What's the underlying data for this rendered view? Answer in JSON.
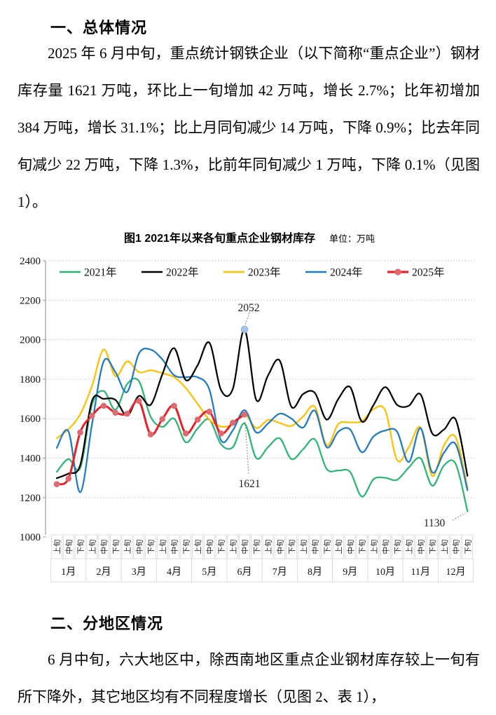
{
  "page": {
    "section1_heading": "一、总体情况",
    "paragraph1": "2025 年 6 月中旬，重点统计钢铁企业（以下简称“重点企业”）钢材库存量 1621 万吨，环比上一旬增加 42 万吨，增长 2.7%；比年初增加 384 万吨，增长 31.1%；比上月同旬减少 14 万吨，下降 0.9%；比去年同旬减少 22 万吨，下降 1.3%，比前年同旬减少 1 万吨，下降 0.1%（见图 1）。",
    "section2_heading": "二、分地区情况",
    "paragraph2": "6 月中旬，六大地区中，除西南地区重点企业钢材库存较上一旬有所下降外，其它地区均有不同程度增长（见图 2、表 1），"
  },
  "chart_data": {
    "type": "line",
    "title": "图1  2021年以来各旬重点企业钢材库存",
    "unit_label": "单位：万吨",
    "ylabel": "",
    "xlabel": "",
    "ylim": [
      1000,
      2400
    ],
    "ytick_step": 200,
    "yticks": [
      1000,
      1200,
      1400,
      1600,
      1800,
      2000,
      2200,
      2400
    ],
    "grid": "dotted-horizontal",
    "legend_position": "top-center",
    "line_style": "smoothed",
    "months": [
      "1月",
      "2月",
      "3月",
      "4月",
      "5月",
      "6月",
      "7月",
      "8月",
      "9月",
      "10月",
      "11月",
      "12月"
    ],
    "periods": [
      "上旬",
      "中旬",
      "下旬"
    ],
    "series": [
      {
        "name": "2021年",
        "color": "#2BB673",
        "values": [
          1330,
          1395,
          1350,
          1670,
          1740,
          1645,
          1775,
          1790,
          1610,
          1558,
          1600,
          1480,
          1550,
          1595,
          1470,
          1455,
          1575,
          1400,
          1455,
          1500,
          1395,
          1445,
          1495,
          1345,
          1337,
          1330,
          1205,
          1293,
          1300,
          1290,
          1352,
          1399,
          1260,
          1363,
          1370,
          1130
        ]
      },
      {
        "name": "2022年",
        "color": "#000000",
        "values": [
          1298,
          1322,
          1364,
          1690,
          1700,
          1695,
          1615,
          1715,
          1670,
          1825,
          1957,
          1795,
          1870,
          1985,
          1745,
          1750,
          2052,
          1695,
          1818,
          1894,
          1660,
          1725,
          1730,
          1595,
          1700,
          1760,
          1585,
          1670,
          1760,
          1670,
          1665,
          1723,
          1525,
          1545,
          1595,
          1310
        ]
      },
      {
        "name": "2023年",
        "color": "#FFC000",
        "values": [
          1500,
          1547,
          1622,
          1765,
          1950,
          1815,
          1890,
          1835,
          1845,
          1830,
          1810,
          1755,
          1675,
          1595,
          1560,
          1570,
          1622,
          1552,
          1593,
          1578,
          1563,
          1611,
          1660,
          1465,
          1573,
          1581,
          1587,
          1648,
          1640,
          1390,
          1455,
          1555,
          1310,
          1465,
          1505,
          1250
        ]
      },
      {
        "name": "2024年",
        "color": "#1F7AC5",
        "values": [
          1452,
          1535,
          1227,
          1570,
          1890,
          1835,
          1735,
          1930,
          1950,
          1900,
          1820,
          1810,
          1810,
          1748,
          1490,
          1540,
          1643,
          1530,
          1575,
          1625,
          1600,
          1555,
          1640,
          1455,
          1534,
          1545,
          1430,
          1510,
          1540,
          1534,
          1380,
          1552,
          1328,
          1428,
          1470,
          1237
        ]
      },
      {
        "name": "2025年",
        "color": "#E62129",
        "marker": true,
        "marker_color": "#DB6B70",
        "values": [
          1268,
          1296,
          1530,
          1615,
          1665,
          1630,
          1625,
          1690,
          1520,
          1598,
          1665,
          1525,
          1595,
          1635,
          1525,
          1579,
          1621
        ]
      }
    ],
    "annotations": [
      {
        "text": "2052",
        "series": "2022年",
        "month": "6月",
        "period": "中旬",
        "value": 2052,
        "point_marker_color": "#A7C4E4"
      },
      {
        "text": "1621",
        "series": "2025年",
        "month": "6月",
        "period": "中旬",
        "value": 1621
      },
      {
        "text": "1130",
        "series": "2021年",
        "month": "12月",
        "period": "下旬",
        "value": 1130
      }
    ],
    "colors": {
      "gridline": "#c6c6c6",
      "axis": "#9a9a9a",
      "tick_box_border": "#d6d6d6",
      "annotation_text": "#222222",
      "leader_line": "#666666"
    }
  }
}
